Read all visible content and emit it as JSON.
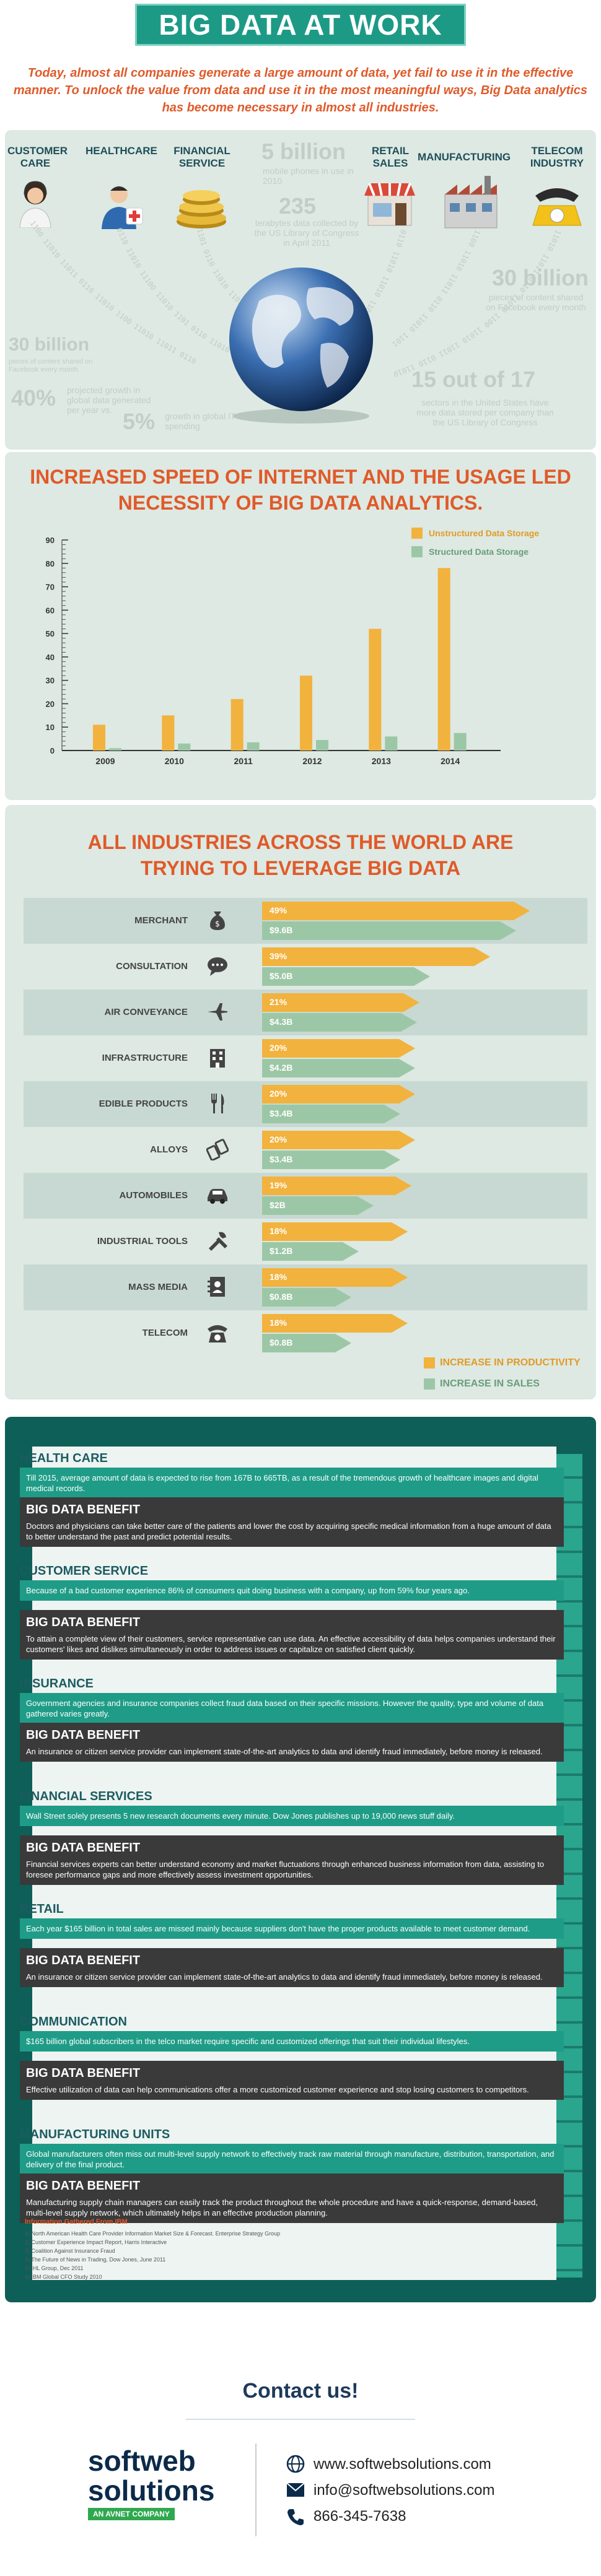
{
  "header": {
    "title": "BIG DATA AT WORK",
    "intro": "Today, almost all companies generate a large amount of data, yet fail to use it in the effective manner. To unlock the value from data and use it in the most meaningful ways, Big Data analytics has become necessary in almost all industries."
  },
  "industries_top": {
    "labels": [
      "CUSTOMER CARE",
      "HEALTHCARE",
      "FINANCIAL SERVICE",
      "RETAIL SALES",
      "MANUFACTURING",
      "TELECOM INDUSTRY"
    ],
    "stats": {
      "s1_big": "5 billion",
      "s1_text": "mobile phones in use in 2010",
      "s2_big": "235",
      "s2_text": "terabytes data collected by the US Library of Congress in April 2011",
      "s3_big": "30 billion",
      "s3_text": "pieces of content shared on Facebook every month",
      "s4_big": "30 billion",
      "s4_text": "pieces of content shared on Facebook every month",
      "s5_big": "40%",
      "s5_text": "projected growth in global data generated per year vs.",
      "s6_big": "5%",
      "s6_text": "growth in global IT spending",
      "s7_big": "15 out of 17",
      "s7_text": "sectors in the United States have more data stored per company than the US Library of Congress"
    }
  },
  "chart_section": {
    "title_line1": "INCREASED SPEED OF INTERNET AND THE USAGE LED",
    "title_line2": "NECESSITY OF BIG DATA ANALYTICS."
  },
  "chart_data": {
    "type": "bar",
    "categories": [
      "2009",
      "2010",
      "2011",
      "2012",
      "2013",
      "2014"
    ],
    "series": [
      {
        "name": "Unstructured Data Storage",
        "values": [
          11,
          15,
          22,
          32,
          52,
          78
        ]
      },
      {
        "name": "Structured Data Storage",
        "values": [
          1,
          3,
          3.5,
          4.5,
          6,
          7.5
        ]
      }
    ],
    "yticks": [
      "0",
      "10",
      "20",
      "30",
      "40",
      "50",
      "60",
      "70",
      "80",
      "90"
    ],
    "ylim": [
      0,
      90
    ],
    "grid": false,
    "legend": "top-right",
    "colors": {
      "Unstructured Data Storage": "#f2b23e",
      "Structured Data Storage": "#9cc7a6"
    }
  },
  "industries_section": {
    "title_line1": "ALL INDUSTRIES ACROSS THE WORLD ARE",
    "title_line2": "TRYING TO LEVERAGE BIG DATA",
    "legend_productivity": "INCREASE IN PRODUCTIVITY",
    "legend_sales": "INCREASE IN SALES",
    "rows": [
      {
        "name": "MERCHANT",
        "productivity": "49%",
        "sales": "$9.6B",
        "icon": "money-bag-icon",
        "p": 49,
        "s": 9.6
      },
      {
        "name": "CONSULTATION",
        "productivity": "39%",
        "sales": "$5.0B",
        "icon": "chat-icon",
        "p": 39,
        "s": 5.0
      },
      {
        "name": "AIR CONVEYANCE",
        "productivity": "21%",
        "sales": "$4.3B",
        "icon": "airplane-icon",
        "p": 21,
        "s": 4.3
      },
      {
        "name": "INFRASTRUCTURE",
        "productivity": "20%",
        "sales": "$4.2B",
        "icon": "building-icon",
        "p": 20,
        "s": 4.2
      },
      {
        "name": "EDIBLE PRODUCTS",
        "productivity": "20%",
        "sales": "$3.4B",
        "icon": "fork-knife-icon",
        "p": 20,
        "s": 3.4
      },
      {
        "name": "ALLOYS",
        "productivity": "20%",
        "sales": "$3.4B",
        "icon": "alloy-icon",
        "p": 20,
        "s": 3.4
      },
      {
        "name": "AUTOMOBILES",
        "productivity": "19%",
        "sales": "$2B",
        "icon": "car-icon",
        "p": 19,
        "s": 2
      },
      {
        "name": "INDUSTRIAL TOOLS",
        "productivity": "18%",
        "sales": "$1.2B",
        "icon": "tools-icon",
        "p": 18,
        "s": 1.2
      },
      {
        "name": "MASS MEDIA",
        "productivity": "18%",
        "sales": "$0.8B",
        "icon": "address-book-icon",
        "p": 18,
        "s": 0.8
      },
      {
        "name": "TELECOM",
        "productivity": "18%",
        "sales": "$0.8B",
        "icon": "telephone-icon",
        "p": 18,
        "s": 0.8
      }
    ]
  },
  "benefits": [
    {
      "head": "HEALTH CARE",
      "fact": "Till 2015, average amount of data is expected to rise from 167B to 665TB, as a result of the tremendous growth of healthcare images and digital medical records.",
      "benefit_title": "BIG DATA BENEFIT",
      "benefit": "Doctors and physicians can take better care of the patients and lower the cost by acquiring specific medical information from a huge amount of data to better understand the past and predict potential results."
    },
    {
      "head": "CUSTOMER SERVICE",
      "fact": "Because of a bad customer experience 86% of consumers quit doing business with a company, up from 59% four years ago.",
      "benefit_title": "BIG DATA BENEFIT",
      "benefit": "To attain a complete view of their customers, service representative can use data. An effective accessibility of data helps companies understand their customers' likes and dislikes simultaneously in order to address issues or capitalize on satisfied client quickly."
    },
    {
      "head": "INSURANCE",
      "fact": "Government agencies and insurance companies collect fraud data based on their specific missions. However the quality, type and volume of data gathered varies greatly.",
      "benefit_title": "BIG DATA BENEFIT",
      "benefit": "An insurance or citizen service provider can implement state-of-the-art analytics to data and identify fraud immediately, before money is released."
    },
    {
      "head": "FINANCIAL SERVICES",
      "fact": "Wall Street solely presents 5 new research documents every minute. Dow Jones publishes up to 19,000 news stuff daily.",
      "benefit_title": "BIG DATA BENEFIT",
      "benefit": "Financial services experts can better understand economy and market fluctuations through enhanced business information from data, assisting to foresee performance gaps and more effectively assess investment opportunities."
    },
    {
      "head": "RETAIL",
      "fact": "Each year $165 billion in total sales are missed mainly because suppliers don't have the proper products available to meet customer demand.",
      "benefit_title": "BIG DATA BENEFIT",
      "benefit": "An insurance or citizen service provider can implement state-of-the-art analytics to data and identify fraud immediately, before money is released."
    },
    {
      "head": "COMMUNICATION",
      "fact": "$165 billion global subscribers in the telco market require specific and customized offerings that suit their individual lifestyles.",
      "benefit_title": "BIG DATA BENEFIT",
      "benefit": "Effective utilization of data can help communications offer a more customized customer experience and stop losing customers to competitors."
    },
    {
      "head": "MANUFACTURING UNITS",
      "fact": "Global manufacturers often miss out multi-level supply network to effectively track raw material through manufacture, distribution, transportation, and delivery of the final product.",
      "benefit_title": "BIG DATA BENEFIT",
      "benefit": "Manufacturing supply chain managers can easily track the product throughout the whole procedure and have a quick-response, demand-based, multi-level supply network, which ultimately helps in an effective production planning."
    }
  ],
  "sources": {
    "head": "Information Gathered From IBM",
    "items": [
      "1) North American Health Care Provider Information Market Size & Forecast. Enterprise Strategy Group",
      "2) Customer Experience Impact Report, Harris Interactive",
      "3) Coalition Against Insurance Fraud",
      "4) The Future of News in Trading, Dow Jones, June 2011",
      "5) IHL Group, Dec 2011",
      "6) IBM Global CFO Study 2010"
    ]
  },
  "contact": {
    "title": "Contact us!",
    "logo_top": "softweb",
    "logo_bottom": "solutions",
    "logo_tag": "AN AVNET COMPANY",
    "website": "www.softwebsolutions.com",
    "email": "info@softwebsolutions.com",
    "phone": "866-345-7638"
  }
}
